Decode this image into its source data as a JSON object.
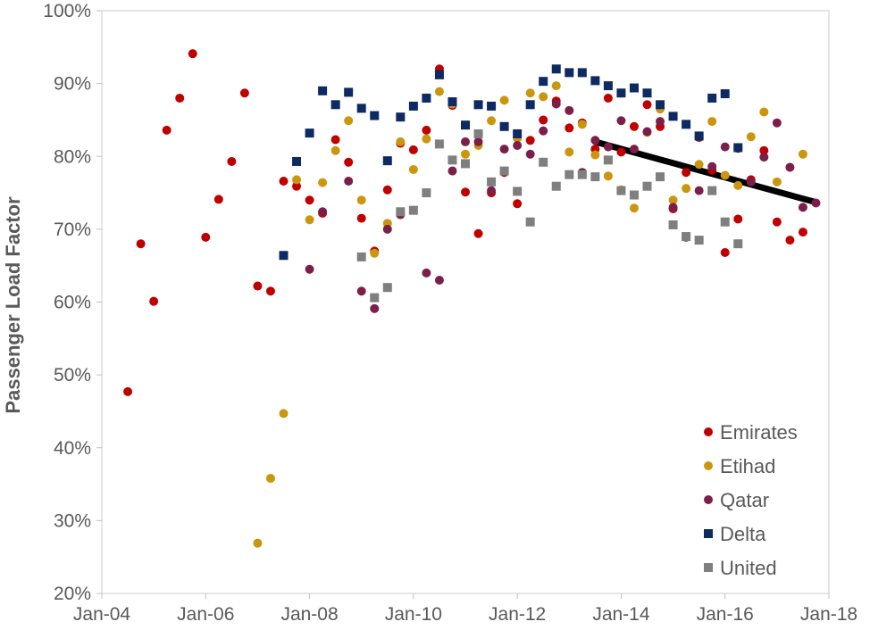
{
  "chart_data": {
    "type": "scatter",
    "title": "",
    "xlabel": "",
    "ylabel": "Passenger Load Factor",
    "x_axis": {
      "type": "date",
      "range": [
        "2004-01",
        "2018-01"
      ],
      "ticks": [
        "2004-01",
        "2006-01",
        "2008-01",
        "2010-01",
        "2012-01",
        "2014-01",
        "2016-01",
        "2018-01"
      ],
      "tick_labels": [
        "Jan-04",
        "Jan-06",
        "Jan-08",
        "Jan-10",
        "Jan-12",
        "Jan-14",
        "Jan-16",
        "Jan-18"
      ]
    },
    "y_axis": {
      "range": [
        20,
        100
      ],
      "ticks": [
        20,
        30,
        40,
        50,
        60,
        70,
        80,
        90,
        100
      ],
      "tick_labels": [
        "20%",
        "30%",
        "40%",
        "50%",
        "60%",
        "70%",
        "80%",
        "90%",
        "100%"
      ]
    },
    "grid": false,
    "legend": {
      "position": "bottom-right"
    },
    "series": [
      {
        "name": "Emirates",
        "color": "#C00000",
        "marker": "circle",
        "points": [
          [
            "2004-07",
            47.7
          ],
          [
            "2004-10",
            68.0
          ],
          [
            "2005-01",
            60.1
          ],
          [
            "2005-04",
            83.6
          ],
          [
            "2005-07",
            88.0
          ],
          [
            "2005-10",
            94.1
          ],
          [
            "2006-01",
            68.9
          ],
          [
            "2006-04",
            74.1
          ],
          [
            "2006-07",
            79.3
          ],
          [
            "2006-10",
            88.7
          ],
          [
            "2007-01",
            62.2
          ],
          [
            "2007-04",
            61.5
          ],
          [
            "2007-07",
            76.6
          ],
          [
            "2007-10",
            75.9
          ],
          [
            "2008-01",
            74.0
          ],
          [
            "2008-04",
            72.2
          ],
          [
            "2008-07",
            82.3
          ],
          [
            "2008-10",
            79.2
          ],
          [
            "2009-01",
            71.5
          ],
          [
            "2009-04",
            67.0
          ],
          [
            "2009-07",
            75.4
          ],
          [
            "2009-10",
            81.8
          ],
          [
            "2010-01",
            80.9
          ],
          [
            "2010-04",
            83.6
          ],
          [
            "2010-07",
            92.0
          ],
          [
            "2010-10",
            87.0
          ],
          [
            "2011-01",
            75.1
          ],
          [
            "2011-04",
            69.4
          ],
          [
            "2011-07",
            75.0
          ],
          [
            "2011-10",
            77.8
          ],
          [
            "2012-01",
            73.5
          ],
          [
            "2012-04",
            82.2
          ],
          [
            "2012-07",
            85.0
          ],
          [
            "2012-10",
            87.6
          ],
          [
            "2013-01",
            83.9
          ],
          [
            "2013-04",
            84.6
          ],
          [
            "2013-07",
            81.0
          ],
          [
            "2013-10",
            88.0
          ],
          [
            "2014-01",
            80.6
          ],
          [
            "2014-04",
            84.1
          ],
          [
            "2014-07",
            87.1
          ],
          [
            "2014-10",
            84.1
          ],
          [
            "2015-01",
            72.8
          ],
          [
            "2015-04",
            77.8
          ],
          [
            "2015-07",
            82.6
          ],
          [
            "2015-10",
            78.1
          ],
          [
            "2016-01",
            66.8
          ],
          [
            "2016-04",
            71.4
          ],
          [
            "2016-07",
            76.8
          ],
          [
            "2016-10",
            80.8
          ],
          [
            "2017-01",
            71.0
          ],
          [
            "2017-04",
            68.5
          ],
          [
            "2017-07",
            69.6
          ]
        ]
      },
      {
        "name": "Etihad",
        "color": "#C9960C",
        "marker": "circle",
        "points": [
          [
            "2007-01",
            26.9
          ],
          [
            "2007-04",
            35.8
          ],
          [
            "2007-07",
            44.7
          ],
          [
            "2007-10",
            76.8
          ],
          [
            "2008-01",
            71.3
          ],
          [
            "2008-04",
            76.4
          ],
          [
            "2008-07",
            80.8
          ],
          [
            "2008-10",
            84.9
          ],
          [
            "2009-01",
            74.0
          ],
          [
            "2009-04",
            66.7
          ],
          [
            "2009-07",
            70.8
          ],
          [
            "2009-10",
            82.0
          ],
          [
            "2010-01",
            78.2
          ],
          [
            "2010-04",
            82.4
          ],
          [
            "2010-07",
            88.9
          ],
          [
            "2010-10",
            87.2
          ],
          [
            "2011-01",
            80.3
          ],
          [
            "2011-04",
            81.5
          ],
          [
            "2011-07",
            84.9
          ],
          [
            "2011-10",
            87.7
          ],
          [
            "2012-01",
            82.5
          ],
          [
            "2012-04",
            88.7
          ],
          [
            "2012-07",
            88.2
          ],
          [
            "2012-10",
            89.7
          ],
          [
            "2013-01",
            80.6
          ],
          [
            "2013-04",
            84.4
          ],
          [
            "2013-07",
            80.2
          ],
          [
            "2013-10",
            77.3
          ],
          [
            "2014-01",
            75.4
          ],
          [
            "2014-04",
            72.9
          ],
          [
            "2014-07",
            83.3
          ],
          [
            "2014-10",
            86.5
          ],
          [
            "2015-01",
            74.0
          ],
          [
            "2015-04",
            75.6
          ],
          [
            "2015-07",
            78.9
          ],
          [
            "2015-10",
            84.8
          ],
          [
            "2016-01",
            77.4
          ],
          [
            "2016-04",
            76.0
          ],
          [
            "2016-07",
            82.7
          ],
          [
            "2016-10",
            86.1
          ],
          [
            "2017-01",
            76.5
          ],
          [
            "2017-04",
            78.5
          ],
          [
            "2017-07",
            80.3
          ]
        ]
      },
      {
        "name": "Qatar",
        "color": "#7B1F4A",
        "marker": "circle",
        "points": [
          [
            "2008-01",
            64.5
          ],
          [
            "2008-04",
            72.4
          ],
          [
            "2008-10",
            76.6
          ],
          [
            "2009-01",
            61.5
          ],
          [
            "2009-04",
            59.1
          ],
          [
            "2009-07",
            70.0
          ],
          [
            "2009-10",
            72.0
          ],
          [
            "2010-04",
            64.0
          ],
          [
            "2010-07",
            63.0
          ],
          [
            "2010-10",
            78.0
          ],
          [
            "2011-01",
            82.0
          ],
          [
            "2011-04",
            82.0
          ],
          [
            "2011-07",
            75.3
          ],
          [
            "2011-10",
            81.0
          ],
          [
            "2012-01",
            81.5
          ],
          [
            "2012-04",
            80.3
          ],
          [
            "2012-07",
            83.5
          ],
          [
            "2012-10",
            87.2
          ],
          [
            "2013-01",
            86.3
          ],
          [
            "2013-04",
            77.8
          ],
          [
            "2013-07",
            82.2
          ],
          [
            "2013-10",
            81.3
          ],
          [
            "2014-01",
            84.9
          ],
          [
            "2014-04",
            81.0
          ],
          [
            "2014-07",
            83.4
          ],
          [
            "2014-10",
            84.8
          ],
          [
            "2015-01",
            73.0
          ],
          [
            "2015-04",
            68.9
          ],
          [
            "2015-07",
            75.3
          ],
          [
            "2015-10",
            78.6
          ],
          [
            "2016-01",
            81.3
          ],
          [
            "2016-04",
            81.1
          ],
          [
            "2016-07",
            76.5
          ],
          [
            "2016-10",
            79.9
          ],
          [
            "2017-01",
            84.6
          ],
          [
            "2017-04",
            78.5
          ],
          [
            "2017-07",
            73.0
          ],
          [
            "2017-10",
            73.6
          ]
        ]
      },
      {
        "name": "Delta",
        "color": "#0D2A63",
        "marker": "square",
        "points": [
          [
            "2007-07",
            66.4
          ],
          [
            "2007-10",
            79.3
          ],
          [
            "2008-01",
            83.2
          ],
          [
            "2008-04",
            89.0
          ],
          [
            "2008-07",
            87.1
          ],
          [
            "2008-10",
            88.8
          ],
          [
            "2009-01",
            86.6
          ],
          [
            "2009-04",
            85.6
          ],
          [
            "2009-07",
            79.4
          ],
          [
            "2009-10",
            85.4
          ],
          [
            "2010-01",
            86.9
          ],
          [
            "2010-04",
            88.0
          ],
          [
            "2010-07",
            91.2
          ],
          [
            "2010-10",
            87.5
          ],
          [
            "2011-01",
            84.3
          ],
          [
            "2011-04",
            87.1
          ],
          [
            "2011-07",
            86.9
          ],
          [
            "2011-10",
            84.1
          ],
          [
            "2012-01",
            83.1
          ],
          [
            "2012-04",
            87.1
          ],
          [
            "2012-07",
            90.3
          ],
          [
            "2012-10",
            92.0
          ],
          [
            "2013-01",
            91.5
          ],
          [
            "2013-04",
            91.5
          ],
          [
            "2013-07",
            90.4
          ],
          [
            "2013-10",
            89.7
          ],
          [
            "2014-01",
            88.7
          ],
          [
            "2014-04",
            89.4
          ],
          [
            "2014-07",
            88.7
          ],
          [
            "2014-10",
            87.1
          ],
          [
            "2015-01",
            85.5
          ],
          [
            "2015-04",
            84.4
          ],
          [
            "2015-07",
            82.8
          ],
          [
            "2015-10",
            88.0
          ],
          [
            "2016-01",
            88.6
          ],
          [
            "2016-04",
            81.2
          ]
        ]
      },
      {
        "name": "United",
        "color": "#7F7F7F",
        "marker": "square",
        "points": [
          [
            "2009-01",
            66.2
          ],
          [
            "2009-04",
            60.6
          ],
          [
            "2009-07",
            62.0
          ],
          [
            "2009-10",
            72.4
          ],
          [
            "2010-01",
            72.6
          ],
          [
            "2010-04",
            75.0
          ],
          [
            "2010-07",
            81.7
          ],
          [
            "2010-10",
            79.5
          ],
          [
            "2011-01",
            79.0
          ],
          [
            "2011-04",
            83.1
          ],
          [
            "2011-07",
            76.5
          ],
          [
            "2011-10",
            78.0
          ],
          [
            "2012-01",
            75.2
          ],
          [
            "2012-04",
            71.0
          ],
          [
            "2012-07",
            79.2
          ],
          [
            "2012-10",
            75.9
          ],
          [
            "2013-01",
            77.5
          ],
          [
            "2013-04",
            77.5
          ],
          [
            "2013-07",
            77.2
          ],
          [
            "2013-10",
            79.5
          ],
          [
            "2014-01",
            75.3
          ],
          [
            "2014-04",
            74.7
          ],
          [
            "2014-07",
            75.9
          ],
          [
            "2014-10",
            77.2
          ],
          [
            "2015-01",
            70.6
          ],
          [
            "2015-04",
            69.0
          ],
          [
            "2015-07",
            68.5
          ],
          [
            "2015-10",
            75.3
          ],
          [
            "2016-01",
            71.0
          ],
          [
            "2016-04",
            68.0
          ]
        ]
      }
    ],
    "annotations": [
      {
        "type": "trendline",
        "color": "#000000",
        "from": [
          "2013-07",
          82.0
        ],
        "to": [
          "2017-10",
          73.7
        ]
      }
    ]
  }
}
